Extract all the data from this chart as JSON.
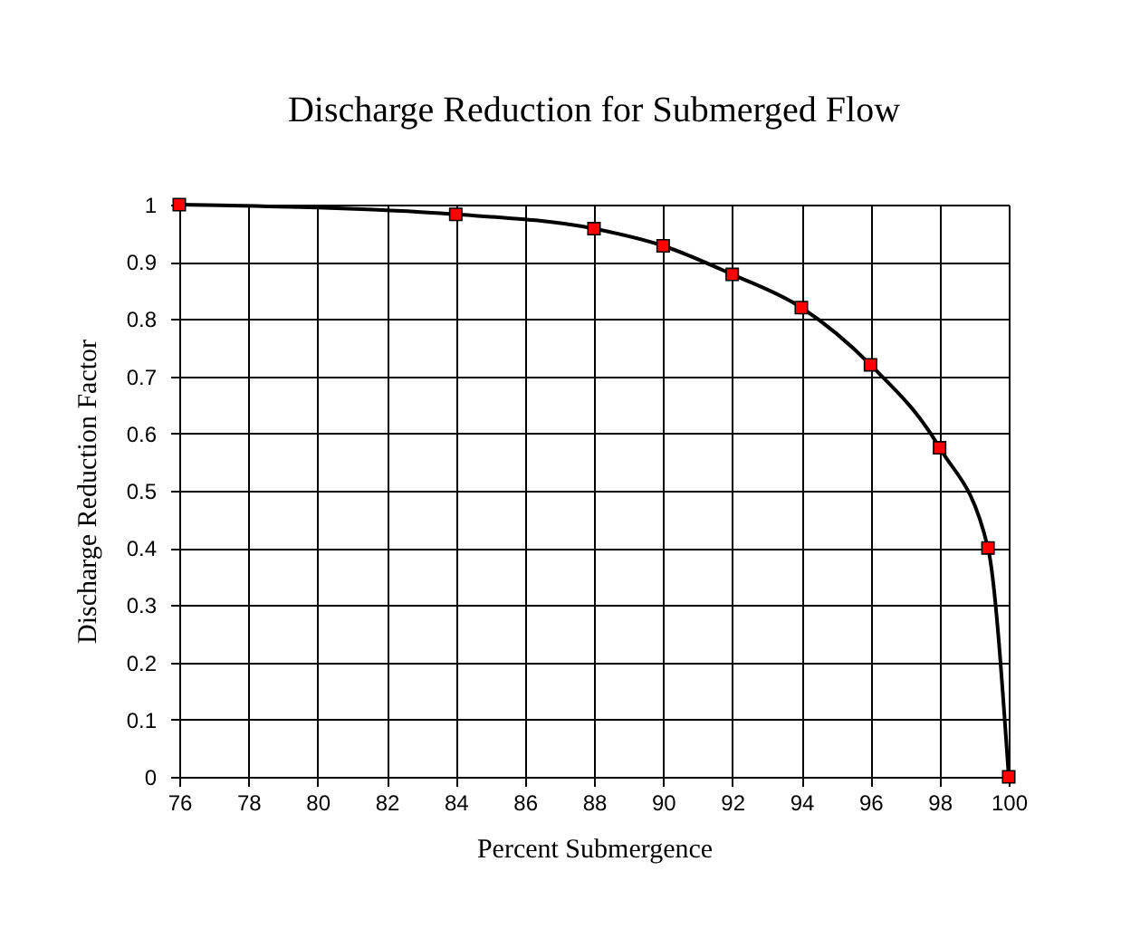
{
  "chart_data": {
    "type": "line",
    "title": "Discharge Reduction for Submerged Flow",
    "xlabel": "Percent Submergence",
    "ylabel": "Discharge Reduction Factor",
    "x": [
      76,
      84,
      88,
      90,
      92,
      94,
      96,
      98,
      99.4,
      100
    ],
    "series": [
      {
        "color": "#000000",
        "colors": [
          "#ff0000",
          "#ff0000",
          "#ff0000",
          "#ff0000",
          "#ff0000",
          "#ff0000",
          "#ff0000",
          "#ff0000",
          "#ff0000",
          "#ff0000"
        ],
        "values": [
          1.0,
          0.983,
          0.958,
          0.928,
          0.878,
          0.82,
          0.72,
          0.575,
          0.4,
          0.0
        ]
      }
    ],
    "xlim": [
      76,
      100
    ],
    "xticks": [
      76,
      78,
      80,
      82,
      84,
      86,
      88,
      90,
      92,
      94,
      96,
      98,
      100
    ],
    "ylim": [
      0,
      1
    ],
    "yticks": [
      0,
      0.1,
      0.2,
      0.3,
      0.4,
      0.5,
      0.6,
      0.7,
      0.8,
      0.9,
      1
    ],
    "grid": true,
    "marker": "square",
    "line_style": "solid"
  }
}
